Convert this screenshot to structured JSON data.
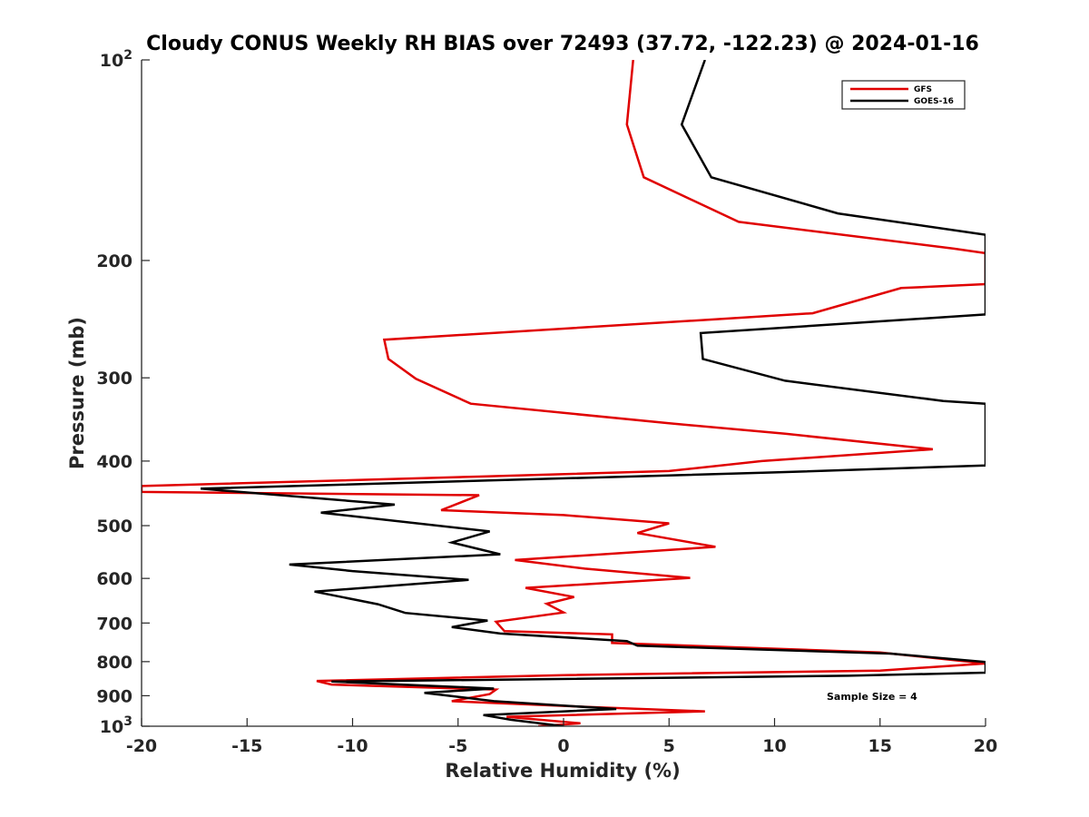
{
  "chart_data": {
    "type": "line",
    "title": "Cloudy CONUS Weekly RH BIAS over 72493 (37.72, -122.23) @ 2024-01-16",
    "xlabel": "Relative Humidity (%)",
    "ylabel": "Pressure (mb)",
    "xlim": [
      -20,
      20
    ],
    "ylim": [
      100,
      1000
    ],
    "y_scale": "log",
    "y_reversed": true,
    "x_ticks": [
      "-20",
      "-15",
      "-10",
      "-5",
      "0",
      "5",
      "10",
      "15",
      "20"
    ],
    "y_ticks": [
      {
        "value": 100,
        "base": "10",
        "exp": "2"
      },
      {
        "value": 200,
        "label": "200"
      },
      {
        "value": 300,
        "label": "300"
      },
      {
        "value": 400,
        "label": "400"
      },
      {
        "value": 500,
        "label": "500"
      },
      {
        "value": 600,
        "label": "600"
      },
      {
        "value": 700,
        "label": "700"
      },
      {
        "value": 800,
        "label": "800"
      },
      {
        "value": 900,
        "label": "900"
      },
      {
        "value": 1000,
        "base": "10",
        "exp": "3"
      }
    ],
    "grid": false,
    "legend_position": "top-right",
    "annotation": "Sample Size = 4",
    "series": [
      {
        "name": "GFS",
        "color": "#e00000",
        "points": [
          [
            3.3,
            100
          ],
          [
            3.0,
            125
          ],
          [
            3.8,
            150
          ],
          [
            8.3,
            175
          ],
          [
            18.5,
            192
          ],
          [
            20,
            195
          ],
          [
            20,
            217
          ],
          [
            16.0,
            220
          ],
          [
            11.8,
            240
          ],
          [
            -8.5,
            263
          ],
          [
            -8.3,
            281
          ],
          [
            -7.0,
            301
          ],
          [
            -4.4,
            328
          ],
          [
            5.0,
            351
          ],
          [
            10.5,
            364
          ],
          [
            17.5,
            384
          ],
          [
            9.4,
            400
          ],
          [
            5.0,
            414
          ],
          [
            -4.0,
            422
          ],
          [
            -20,
            436
          ],
          [
            -20,
            445
          ],
          [
            -4.0,
            450
          ],
          [
            -5.8,
            474
          ],
          [
            0,
            482
          ],
          [
            5.0,
            496
          ],
          [
            3.5,
            513
          ],
          [
            7.2,
            538
          ],
          [
            -2.3,
            563
          ],
          [
            1.0,
            580
          ],
          [
            6.0,
            599
          ],
          [
            -1.8,
            620
          ],
          [
            0.5,
            640
          ],
          [
            -0.8,
            655
          ],
          [
            0.0,
            675
          ],
          [
            -3.2,
            697
          ],
          [
            -2.8,
            720
          ],
          [
            2.3,
            728
          ],
          [
            2.3,
            750
          ],
          [
            15.0,
            775
          ],
          [
            20,
            805
          ],
          [
            15.0,
            825
          ],
          [
            0.0,
            838
          ],
          [
            -11.7,
            855
          ],
          [
            -11.0,
            866
          ],
          [
            -3.2,
            881
          ],
          [
            -3.5,
            895
          ],
          [
            -5.3,
            917
          ],
          [
            1.0,
            935
          ],
          [
            6.7,
            950
          ],
          [
            -2.7,
            968
          ],
          [
            0.8,
            990
          ],
          [
            -1.2,
            1000
          ]
        ]
      },
      {
        "name": "GOES-16",
        "color": "#000000",
        "points": [
          [
            6.7,
            100
          ],
          [
            5.6,
            125
          ],
          [
            7.0,
            150
          ],
          [
            13.0,
            170
          ],
          [
            20,
            183
          ],
          [
            20,
            241
          ],
          [
            6.5,
            257
          ],
          [
            6.6,
            281
          ],
          [
            10.5,
            303
          ],
          [
            18.0,
            325
          ],
          [
            20,
            328
          ],
          [
            20,
            406
          ],
          [
            10.0,
            416
          ],
          [
            -17.2,
            440
          ],
          [
            -8.0,
            465
          ],
          [
            -11.5,
            478
          ],
          [
            -3.5,
            510
          ],
          [
            -5.3,
            530
          ],
          [
            -3.0,
            552
          ],
          [
            -13.0,
            572
          ],
          [
            -10.0,
            585
          ],
          [
            -4.5,
            603
          ],
          [
            -11.8,
            628
          ],
          [
            -8.8,
            656
          ],
          [
            -7.5,
            676
          ],
          [
            -3.6,
            694
          ],
          [
            -5.3,
            710
          ],
          [
            -3.0,
            726
          ],
          [
            3.0,
            745
          ],
          [
            3.5,
            757
          ],
          [
            15.5,
            778
          ],
          [
            20,
            801
          ],
          [
            20,
            831
          ],
          [
            13.5,
            840
          ],
          [
            -11.0,
            857
          ],
          [
            -3.3,
            878
          ],
          [
            -6.6,
            891
          ],
          [
            -3.3,
            917
          ],
          [
            2.5,
            942
          ],
          [
            -3.8,
            962
          ],
          [
            -2.5,
            978
          ],
          [
            0,
            1000
          ]
        ]
      }
    ]
  }
}
